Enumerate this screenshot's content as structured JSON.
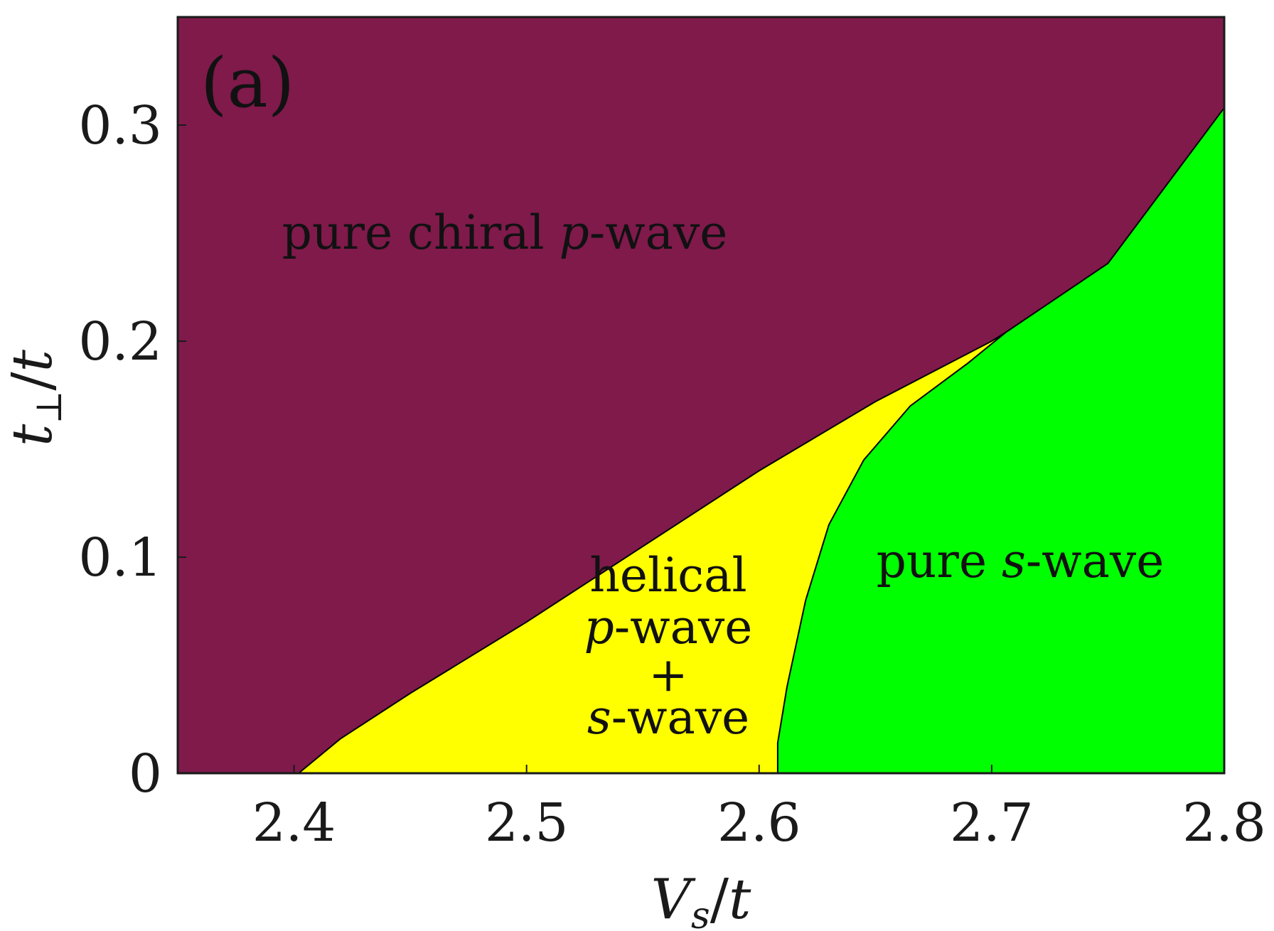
{
  "chart_data": {
    "type": "area",
    "panel_label": "(a)",
    "xlabel": "V_s/t",
    "ylabel": "t_⊥/t",
    "xlim": [
      2.35,
      2.8
    ],
    "ylim": [
      0,
      0.35
    ],
    "xticks": [
      "2.4",
      "2.5",
      "2.6",
      "2.7",
      "2.8"
    ],
    "xtick_values": [
      2.4,
      2.5,
      2.6,
      2.7,
      2.8
    ],
    "yticks": [
      "0",
      "0.1",
      "0.2",
      "0.3"
    ],
    "ytick_values": [
      0,
      0.1,
      0.2,
      0.3
    ],
    "grid": false,
    "colors": {
      "chiral": "#7f1a4b",
      "helical": "#ffff00",
      "swave": "#00ff00"
    },
    "boundaries": {
      "chiral_upper": [
        [
          2.402,
          0.0
        ],
        [
          2.42,
          0.016
        ],
        [
          2.45,
          0.037
        ],
        [
          2.5,
          0.07
        ],
        [
          2.55,
          0.105
        ],
        [
          2.6,
          0.14
        ],
        [
          2.65,
          0.172
        ],
        [
          2.7,
          0.2
        ],
        [
          2.706,
          0.204
        ],
        [
          2.75,
          0.236
        ],
        [
          2.8,
          0.308
        ]
      ],
      "swave_left": [
        [
          2.608,
          0.0
        ],
        [
          2.608,
          0.014
        ],
        [
          2.612,
          0.04
        ],
        [
          2.62,
          0.08
        ],
        [
          2.63,
          0.115
        ],
        [
          2.645,
          0.145
        ],
        [
          2.665,
          0.17
        ],
        [
          2.69,
          0.19
        ],
        [
          2.706,
          0.204
        ]
      ]
    },
    "regions": [
      {
        "name": "chiral",
        "lines": [
          "pure chiral p-wave"
        ]
      },
      {
        "name": "helical",
        "lines": [
          "helical",
          "p-wave",
          "+",
          "s-wave"
        ]
      },
      {
        "name": "swave",
        "lines": [
          "pure s-wave"
        ]
      }
    ]
  }
}
